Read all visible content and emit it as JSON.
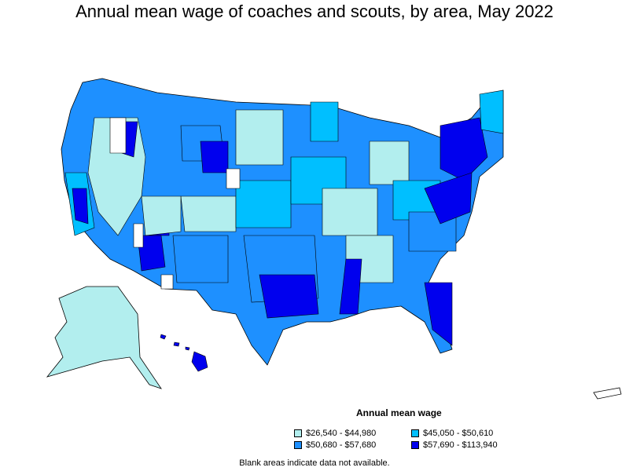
{
  "title": "Annual mean wage of coaches and scouts, by area, May 2022",
  "legend": {
    "title": "Annual mean wage",
    "items": [
      {
        "label": "$26,540 - $44,980",
        "color": "#b2eeee"
      },
      {
        "label": "$45,050 - $50,610",
        "color": "#00bfff"
      },
      {
        "label": "$50,680 - $57,680",
        "color": "#1e90ff"
      },
      {
        "label": "$57,690 - $113,940",
        "color": "#0000ee"
      }
    ]
  },
  "footnote": "Blank areas indicate data not available.",
  "colors": {
    "blank": "#ffffff",
    "border": "#000000"
  }
}
